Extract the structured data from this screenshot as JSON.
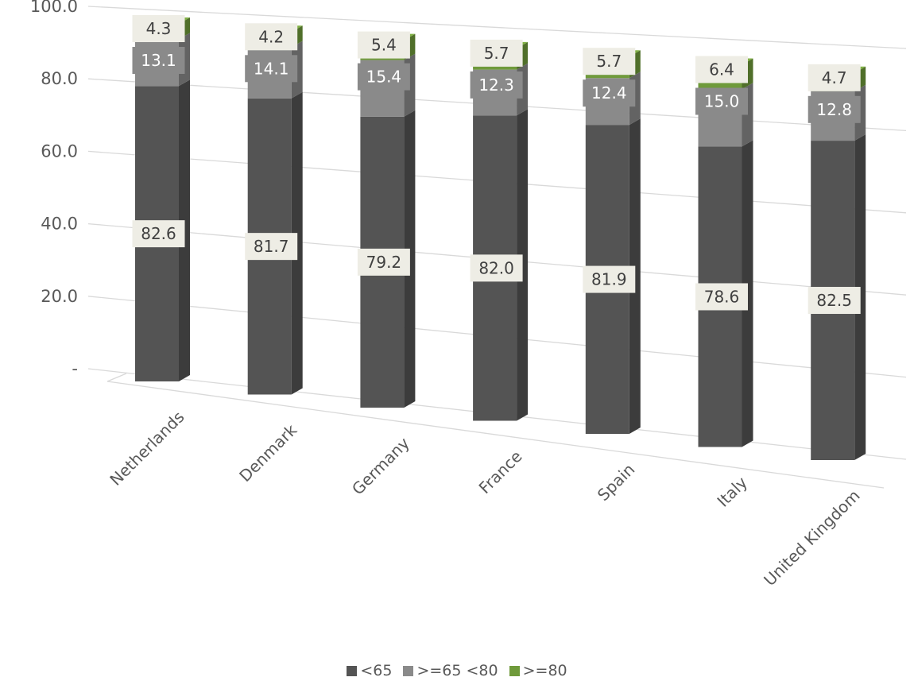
{
  "chart_data": {
    "type": "bar",
    "stacked": true,
    "three_d": true,
    "categories": [
      "Netherlands",
      "Denmark",
      "Germany",
      "France",
      "Spain",
      "Italy",
      "United Kingdom"
    ],
    "series": [
      {
        "name": "<65",
        "color": "#545454",
        "values": [
          82.6,
          81.7,
          79.2,
          82.0,
          81.9,
          78.6,
          82.5
        ]
      },
      {
        "name": ">=65 <80",
        "color": "#8a8a8a",
        "values": [
          13.1,
          14.1,
          15.4,
          12.3,
          12.4,
          15.0,
          12.8
        ]
      },
      {
        "name": ">=80",
        "color": "#6f9a3b",
        "values": [
          4.3,
          4.2,
          5.4,
          5.7,
          5.7,
          6.4,
          4.7
        ]
      }
    ],
    "yticks": [
      "-",
      "20.0",
      "40.0",
      "60.0",
      "80.0",
      "100.0"
    ],
    "ylim": [
      0,
      100
    ],
    "grid": true,
    "legend_position": "bottom",
    "data_labels": true
  }
}
